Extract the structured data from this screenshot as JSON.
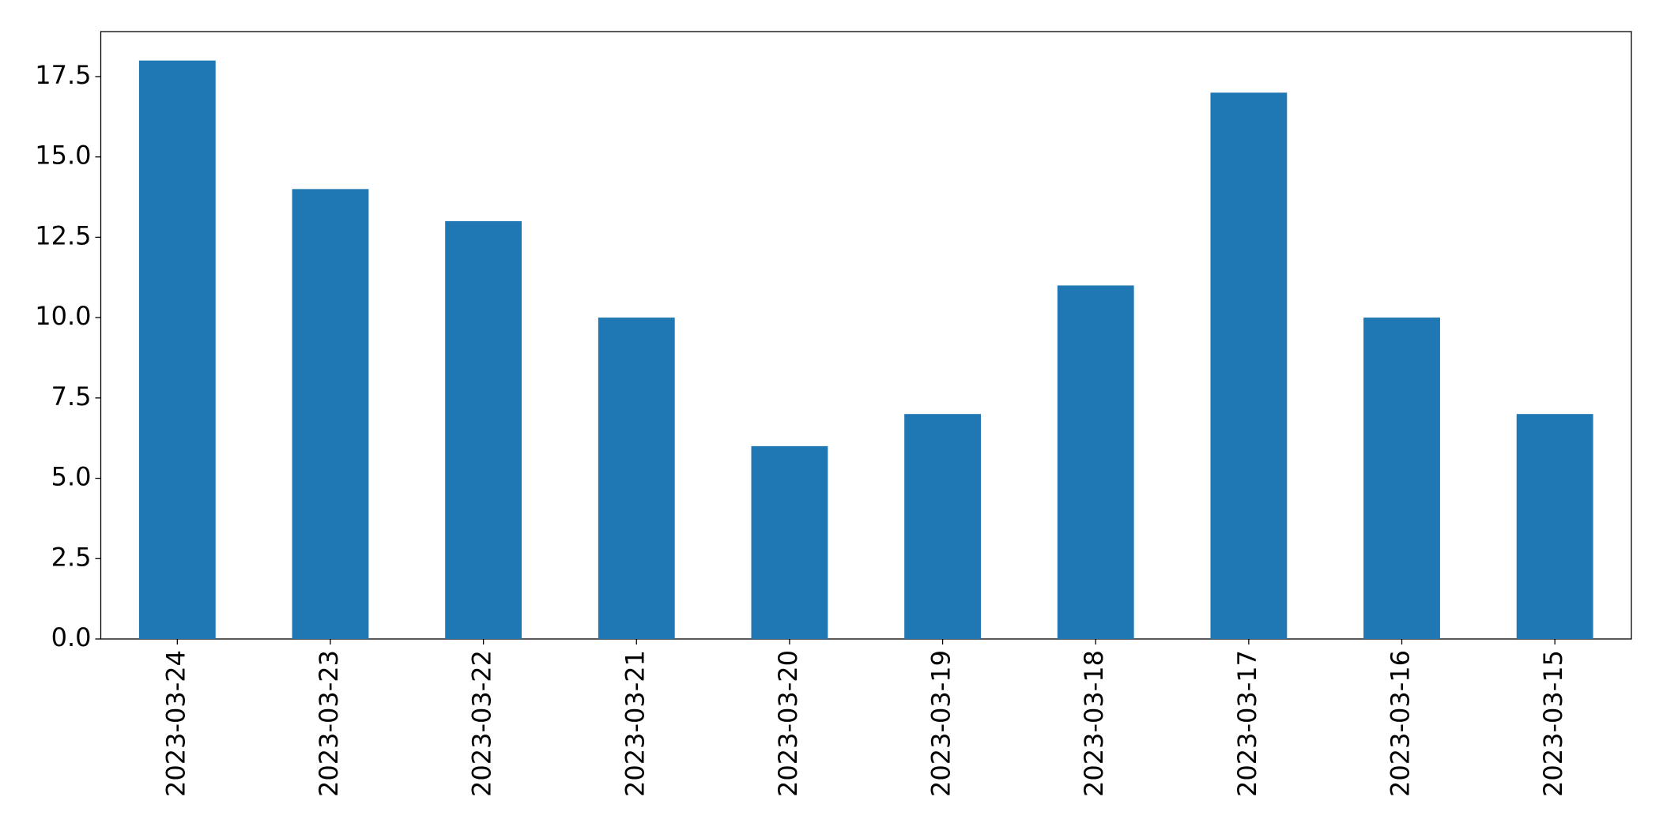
{
  "chart_data": {
    "type": "bar",
    "categories": [
      "2023-03-24",
      "2023-03-23",
      "2023-03-22",
      "2023-03-21",
      "2023-03-20",
      "2023-03-19",
      "2023-03-18",
      "2023-03-17",
      "2023-03-16",
      "2023-03-15"
    ],
    "values": [
      18,
      14,
      13,
      10,
      6,
      7,
      11,
      17,
      10,
      7
    ],
    "color": "#1f77b4",
    "ylim": [
      0,
      18.9
    ],
    "yticks": [
      {
        "value": 0,
        "label": "0.0"
      },
      2.5,
      {
        "value": 5,
        "label": "5.0"
      },
      7.5,
      {
        "value": 10,
        "label": "10.0"
      },
      12.5,
      {
        "value": 15,
        "label": "15.0"
      },
      17.5
    ],
    "grid": false
  }
}
